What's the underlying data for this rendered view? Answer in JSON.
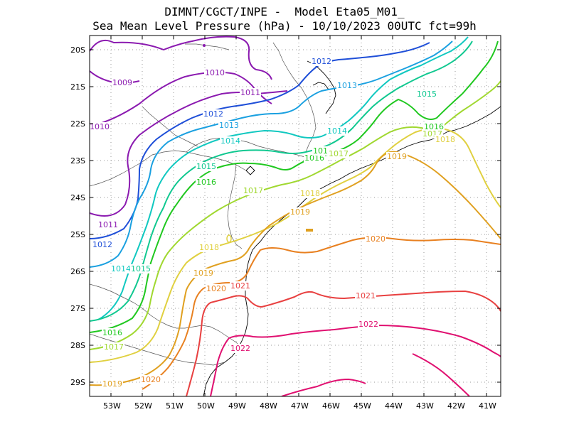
{
  "header": {
    "line1": "DIMNT/CGCT/INPE -  Model Eta05_M01_",
    "line2": "Sea Mean Level Pressure (hPa) - 10/10/2023 00UTC fct=99h"
  },
  "axes": {
    "lat_ticks": [
      "20S",
      "21S",
      "22S",
      "23S",
      "24S",
      "25S",
      "26S",
      "27S",
      "28S",
      "29S"
    ],
    "lon_ticks": [
      "53W",
      "52W",
      "51W",
      "50W",
      "49W",
      "48W",
      "47W",
      "46W",
      "45W",
      "44W",
      "43W",
      "42W",
      "41W"
    ]
  },
  "contour_labels": [
    {
      "text": "1009",
      "color": "#8b1ab0"
    },
    {
      "text": "1010",
      "color": "#8b1ab0"
    },
    {
      "text": "1010",
      "color": "#8b1ab0"
    },
    {
      "text": "1011",
      "color": "#8b1ab0"
    },
    {
      "text": "1011",
      "color": "#8b1ab0"
    },
    {
      "text": "1012",
      "color": "#1f4fd8"
    },
    {
      "text": "1012",
      "color": "#1f4fd8"
    },
    {
      "text": "1012",
      "color": "#1f4fd8"
    },
    {
      "text": "1013",
      "color": "#1aa0e0"
    },
    {
      "text": "1013",
      "color": "#1aa0e0"
    },
    {
      "text": "1014",
      "color": "#10c8c0"
    },
    {
      "text": "1014",
      "color": "#10c8c0"
    },
    {
      "text": "1014",
      "color": "#10c8c0"
    },
    {
      "text": "1015",
      "color": "#10c890"
    },
    {
      "text": "1015",
      "color": "#10c890"
    },
    {
      "text": "1015",
      "color": "#10c890"
    },
    {
      "text": "1016",
      "color": "#20c820"
    },
    {
      "text": "1016",
      "color": "#20c820"
    },
    {
      "text": "1016",
      "color": "#20c820"
    },
    {
      "text": "1016",
      "color": "#20c820"
    },
    {
      "text": "101",
      "color": "#20c820"
    },
    {
      "text": "1017",
      "color": "#a0d830"
    },
    {
      "text": "1017",
      "color": "#a0d830"
    },
    {
      "text": "1017",
      "color": "#a0d830"
    },
    {
      "text": "1017",
      "color": "#a0d830"
    },
    {
      "text": "1018",
      "color": "#e0d040"
    },
    {
      "text": "1018",
      "color": "#e0d040"
    },
    {
      "text": "1018",
      "color": "#e0d040"
    },
    {
      "text": "1019",
      "color": "#e0a020"
    },
    {
      "text": "1019",
      "color": "#e0a020"
    },
    {
      "text": "1019",
      "color": "#e0a020"
    },
    {
      "text": "1019",
      "color": "#e0a020"
    },
    {
      "text": "1020",
      "color": "#e88020"
    },
    {
      "text": "1020",
      "color": "#e88020"
    },
    {
      "text": "1020",
      "color": "#e88020"
    },
    {
      "text": "1021",
      "color": "#e84040"
    },
    {
      "text": "1021",
      "color": "#e84040"
    },
    {
      "text": "1022",
      "color": "#e01070"
    },
    {
      "text": "1022",
      "color": "#e01070"
    }
  ]
}
